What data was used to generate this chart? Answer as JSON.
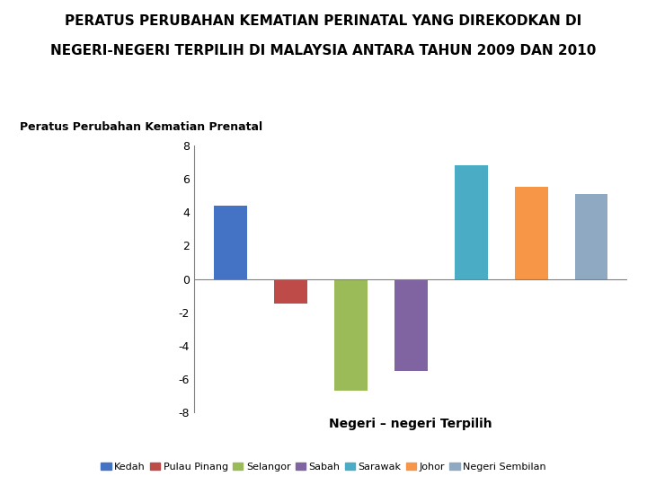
{
  "title_line1": "PERATUS PERUBAHAN KEMATIAN PERINATAL YANG DIREKODKAN DI",
  "title_line2": "NEGERI-NEGERI TERPILIH DI MALAYSIA ANTARA TAHUN 2009 DAN 2010",
  "ylabel_text": "Peratus Perubahan Kematian Prenatal",
  "xlabel": "Negeri – negeri Terpilih",
  "categories": [
    "Kedah",
    "Pulau Pinang",
    "Selangor",
    "Sabah",
    "Sarawak",
    "Johor",
    "Negeri Sembilan"
  ],
  "values": [
    4.4,
    -1.5,
    -6.7,
    -5.5,
    6.8,
    5.5,
    5.1
  ],
  "colors": [
    "#4472C4",
    "#BE4B48",
    "#9BBB59",
    "#8064A2",
    "#4BACC6",
    "#F79646",
    "#8EA9C1"
  ],
  "ylim": [
    -8,
    8
  ],
  "yticks": [
    -8,
    -6,
    -4,
    -2,
    0,
    2,
    4,
    6,
    8
  ],
  "background_color": "#FFFFFF",
  "title_fontsize": 11,
  "ylabel_fontsize": 9,
  "xlabel_fontsize": 10,
  "legend_fontsize": 8,
  "bar_width": 0.55
}
